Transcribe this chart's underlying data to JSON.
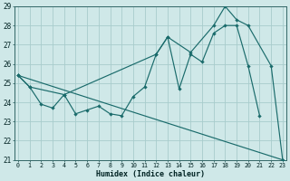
{
  "xlabel": "Humidex (Indice chaleur)",
  "bg_color": "#cfe8e8",
  "grid_color": "#a8cccc",
  "line_color": "#1a6b6b",
  "xlim": [
    0,
    23
  ],
  "ylim": [
    21,
    29
  ],
  "yticks": [
    21,
    22,
    23,
    24,
    25,
    26,
    27,
    28,
    29
  ],
  "xticks": [
    0,
    1,
    2,
    3,
    4,
    5,
    6,
    7,
    8,
    9,
    10,
    11,
    12,
    13,
    14,
    15,
    16,
    17,
    18,
    19,
    20,
    21,
    22,
    23
  ],
  "line1_x": [
    0,
    1,
    2,
    3,
    4,
    5,
    6,
    7,
    8,
    9,
    10,
    11,
    12,
    13,
    14,
    15,
    16,
    17,
    18,
    19,
    20,
    21
  ],
  "line1_y": [
    25.4,
    24.8,
    23.9,
    23.7,
    24.4,
    23.4,
    23.6,
    23.8,
    23.4,
    23.3,
    24.3,
    24.8,
    26.5,
    27.4,
    24.7,
    26.5,
    26.1,
    27.6,
    28.0,
    28.0,
    25.9,
    23.3
  ],
  "line2_x": [
    0,
    1,
    4,
    12,
    13,
    15,
    17,
    18,
    19,
    20,
    22,
    23
  ],
  "line2_y": [
    25.4,
    24.8,
    24.4,
    26.5,
    27.4,
    26.6,
    28.0,
    29.0,
    28.3,
    28.0,
    25.9,
    21.0
  ],
  "line3_x": [
    0,
    23
  ],
  "line3_y": [
    25.4,
    21.0
  ]
}
